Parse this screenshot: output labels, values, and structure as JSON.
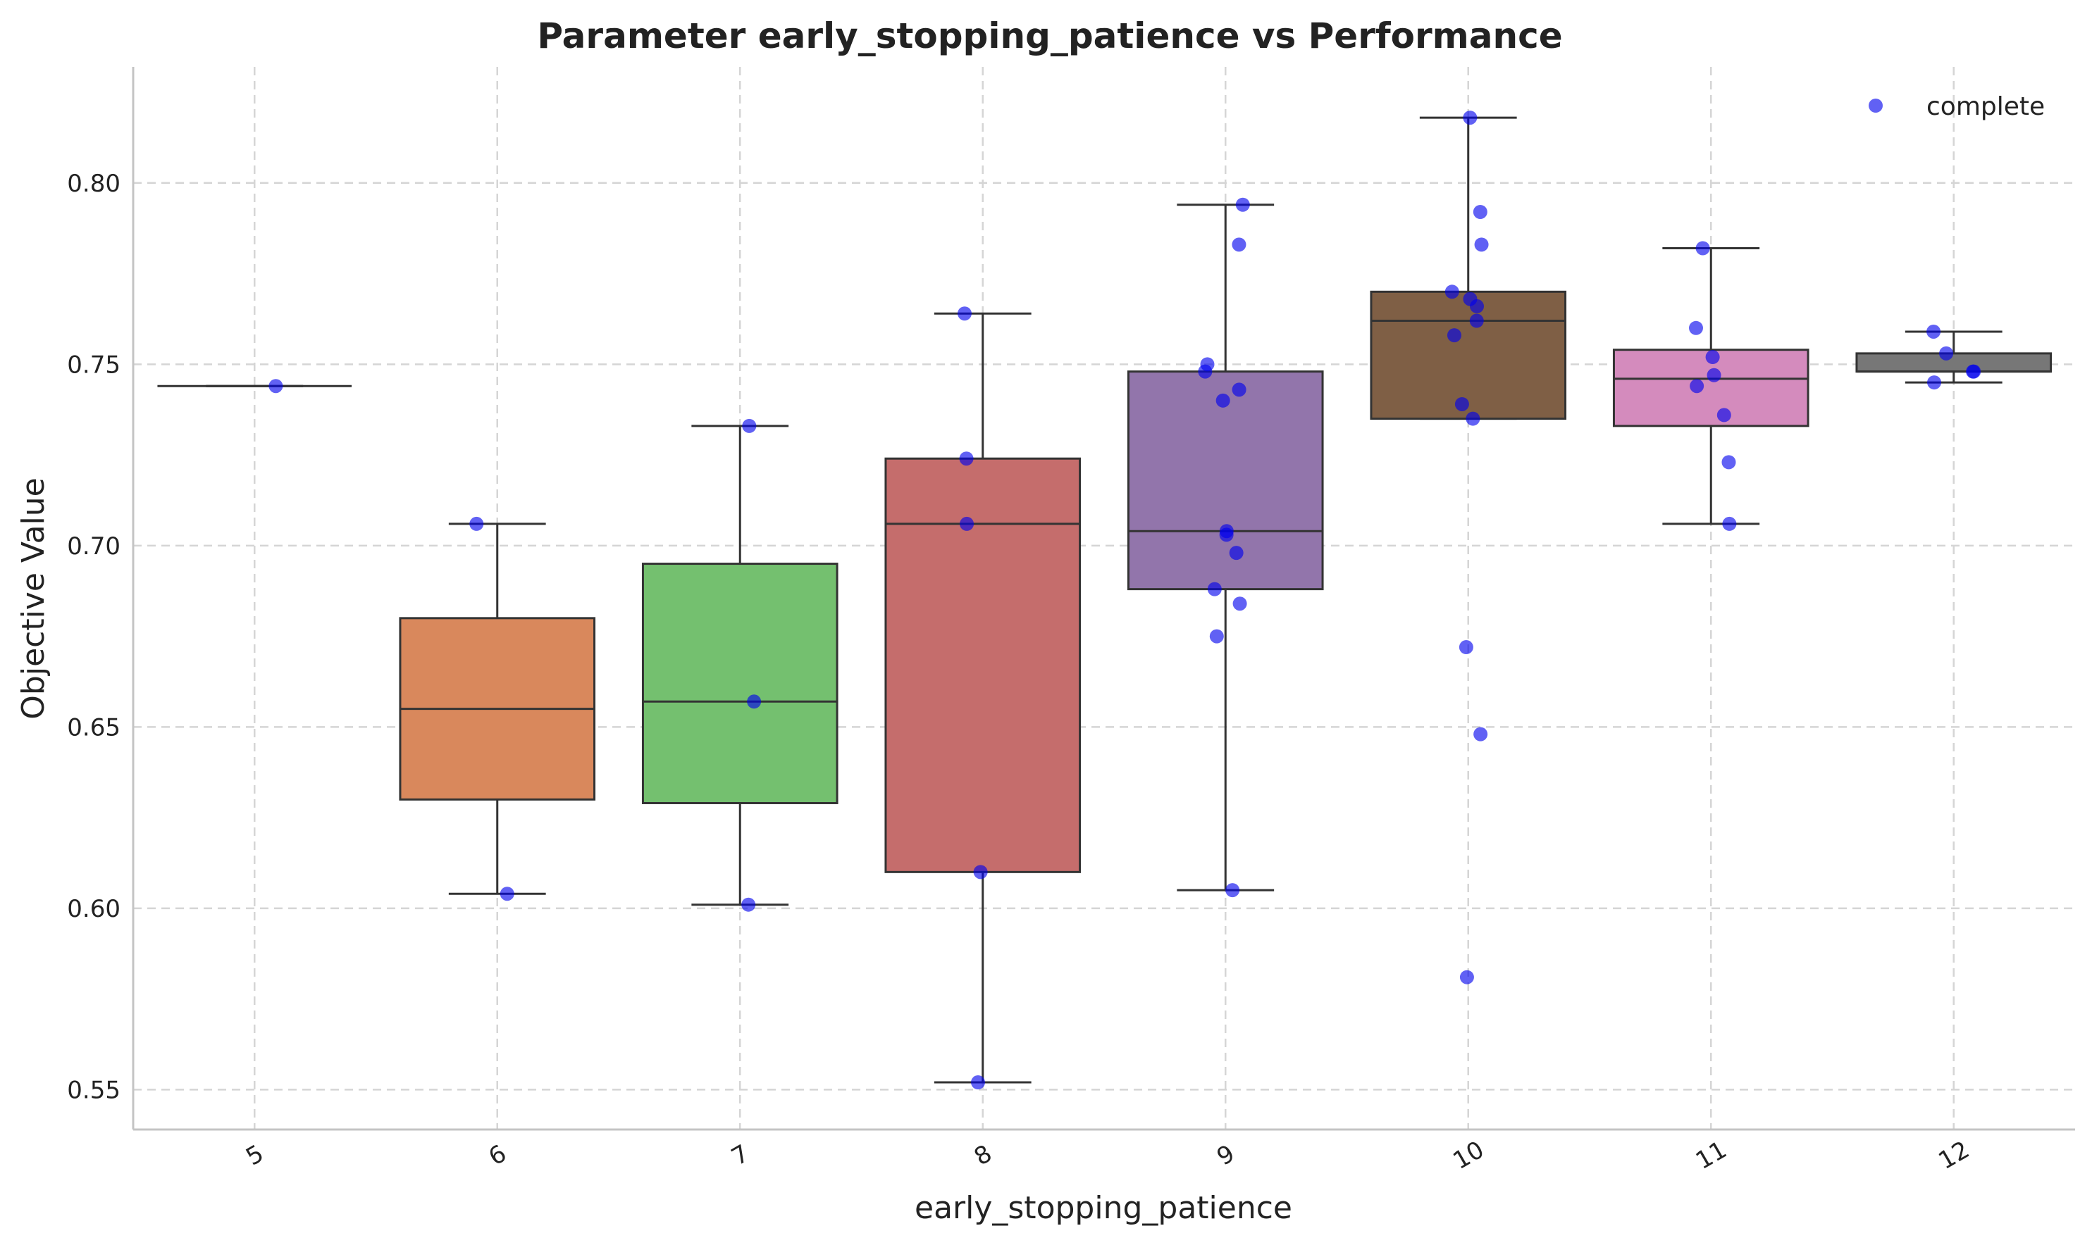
{
  "chart_data": {
    "type": "box",
    "title": "Parameter early_stopping_patience vs Performance",
    "xlabel": "early_stopping_patience",
    "ylabel": "Objective Value",
    "categories": [
      "5",
      "6",
      "7",
      "8",
      "9",
      "10",
      "11",
      "12"
    ],
    "ylim": [
      0.539,
      0.832
    ],
    "yticks": [
      0.55,
      0.6,
      0.65,
      0.7,
      0.75,
      0.8
    ],
    "ytick_labels": [
      "0.55",
      "0.60",
      "0.65",
      "0.70",
      "0.75",
      "0.80"
    ],
    "grid": true,
    "legend": {
      "location": "top-right",
      "entries": [
        {
          "label": "complete",
          "color": "#0000ee"
        }
      ]
    },
    "boxes": [
      {
        "category": "5",
        "color": null,
        "whislo": 0.744,
        "q1": 0.744,
        "median": 0.744,
        "q3": 0.744,
        "whishi": 0.744
      },
      {
        "category": "6",
        "color": "#d9885c",
        "whislo": 0.604,
        "q1": 0.63,
        "median": 0.655,
        "q3": 0.68,
        "whishi": 0.706
      },
      {
        "category": "7",
        "color": "#74c06f",
        "whislo": 0.601,
        "q1": 0.629,
        "median": 0.657,
        "q3": 0.695,
        "whishi": 0.733
      },
      {
        "category": "8",
        "color": "#c56d6c",
        "whislo": 0.552,
        "q1": 0.61,
        "median": 0.706,
        "q3": 0.724,
        "whishi": 0.764
      },
      {
        "category": "9",
        "color": "#9275ab",
        "whislo": 0.605,
        "q1": 0.688,
        "median": 0.704,
        "q3": 0.748,
        "whishi": 0.794
      },
      {
        "category": "10",
        "color": "#7f5f45",
        "whislo": 0.735,
        "q1": 0.735,
        "median": 0.762,
        "q3": 0.77,
        "whishi": 0.818
      },
      {
        "category": "11",
        "color": "#d48bbd",
        "whislo": 0.706,
        "q1": 0.733,
        "median": 0.746,
        "q3": 0.754,
        "whishi": 0.782
      },
      {
        "category": "12",
        "color": "#777777",
        "whislo": 0.745,
        "q1": 0.748,
        "median": 0.748,
        "q3": 0.753,
        "whishi": 0.759
      }
    ],
    "series": [
      {
        "name": "complete",
        "color": "#0000ee",
        "points": [
          {
            "x": "5",
            "y": 0.744
          },
          {
            "x": "6",
            "y": 0.706
          },
          {
            "x": "6",
            "y": 0.604
          },
          {
            "x": "7",
            "y": 0.733
          },
          {
            "x": "7",
            "y": 0.657
          },
          {
            "x": "7",
            "y": 0.601
          },
          {
            "x": "8",
            "y": 0.764
          },
          {
            "x": "8",
            "y": 0.724
          },
          {
            "x": "8",
            "y": 0.706
          },
          {
            "x": "8",
            "y": 0.61
          },
          {
            "x": "8",
            "y": 0.552
          },
          {
            "x": "9",
            "y": 0.794
          },
          {
            "x": "9",
            "y": 0.783
          },
          {
            "x": "9",
            "y": 0.75
          },
          {
            "x": "9",
            "y": 0.748
          },
          {
            "x": "9",
            "y": 0.743
          },
          {
            "x": "9",
            "y": 0.74
          },
          {
            "x": "9",
            "y": 0.704
          },
          {
            "x": "9",
            "y": 0.703
          },
          {
            "x": "9",
            "y": 0.698
          },
          {
            "x": "9",
            "y": 0.688
          },
          {
            "x": "9",
            "y": 0.684
          },
          {
            "x": "9",
            "y": 0.675
          },
          {
            "x": "9",
            "y": 0.605
          },
          {
            "x": "10",
            "y": 0.818
          },
          {
            "x": "10",
            "y": 0.792
          },
          {
            "x": "10",
            "y": 0.783
          },
          {
            "x": "10",
            "y": 0.77
          },
          {
            "x": "10",
            "y": 0.768
          },
          {
            "x": "10",
            "y": 0.766
          },
          {
            "x": "10",
            "y": 0.762
          },
          {
            "x": "10",
            "y": 0.758
          },
          {
            "x": "10",
            "y": 0.739
          },
          {
            "x": "10",
            "y": 0.735
          },
          {
            "x": "10",
            "y": 0.672
          },
          {
            "x": "10",
            "y": 0.648
          },
          {
            "x": "10",
            "y": 0.581
          },
          {
            "x": "11",
            "y": 0.782
          },
          {
            "x": "11",
            "y": 0.76
          },
          {
            "x": "11",
            "y": 0.752
          },
          {
            "x": "11",
            "y": 0.747
          },
          {
            "x": "11",
            "y": 0.744
          },
          {
            "x": "11",
            "y": 0.736
          },
          {
            "x": "11",
            "y": 0.723
          },
          {
            "x": "11",
            "y": 0.706
          },
          {
            "x": "12",
            "y": 0.759
          },
          {
            "x": "12",
            "y": 0.753
          },
          {
            "x": "12",
            "y": 0.748
          },
          {
            "x": "12",
            "y": 0.748
          },
          {
            "x": "12",
            "y": 0.745
          }
        ]
      }
    ]
  }
}
